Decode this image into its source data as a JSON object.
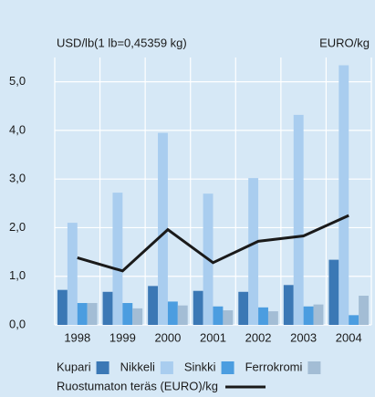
{
  "chart_data": {
    "type": "bar",
    "y_label_left": "USD/lb(1 lb=0,45359 kg)",
    "y_label_right": "EURO/kg",
    "categories": [
      "1998",
      "1999",
      "2000",
      "2001",
      "2002",
      "2003",
      "2004"
    ],
    "series": [
      {
        "name": "Kupari",
        "color": "#3b78b5",
        "values": [
          0.72,
          0.68,
          0.8,
          0.7,
          0.68,
          0.82,
          1.34
        ]
      },
      {
        "name": "Nikkeli",
        "color": "#a9cdef",
        "values": [
          2.1,
          2.72,
          3.95,
          2.7,
          3.02,
          4.32,
          5.34
        ]
      },
      {
        "name": "Sinkki",
        "color": "#4b9de0",
        "values": [
          0.45,
          0.45,
          0.48,
          0.38,
          0.36,
          0.38,
          0.2
        ]
      },
      {
        "name": "Ferrokromi",
        "color": "#a3bdd5",
        "values": [
          0.45,
          0.34,
          0.4,
          0.3,
          0.28,
          0.42,
          0.6
        ]
      },
      {
        "name": "Ruostumaton teräs (EURO)/kg",
        "type": "line",
        "color": "#1a1a1a",
        "values": [
          1.38,
          1.11,
          1.96,
          1.28,
          1.72,
          1.83,
          2.25
        ]
      }
    ],
    "ylim": [
      0,
      5.5
    ],
    "yticks": [
      {
        "value": 0,
        "label": "0,0"
      },
      {
        "value": 1,
        "label": "1,0"
      },
      {
        "value": 2,
        "label": "2,0"
      },
      {
        "value": 3,
        "label": "3,0"
      },
      {
        "value": 4,
        "label": "4,0"
      },
      {
        "value": 5,
        "label": "5,0"
      }
    ],
    "grid": true
  }
}
